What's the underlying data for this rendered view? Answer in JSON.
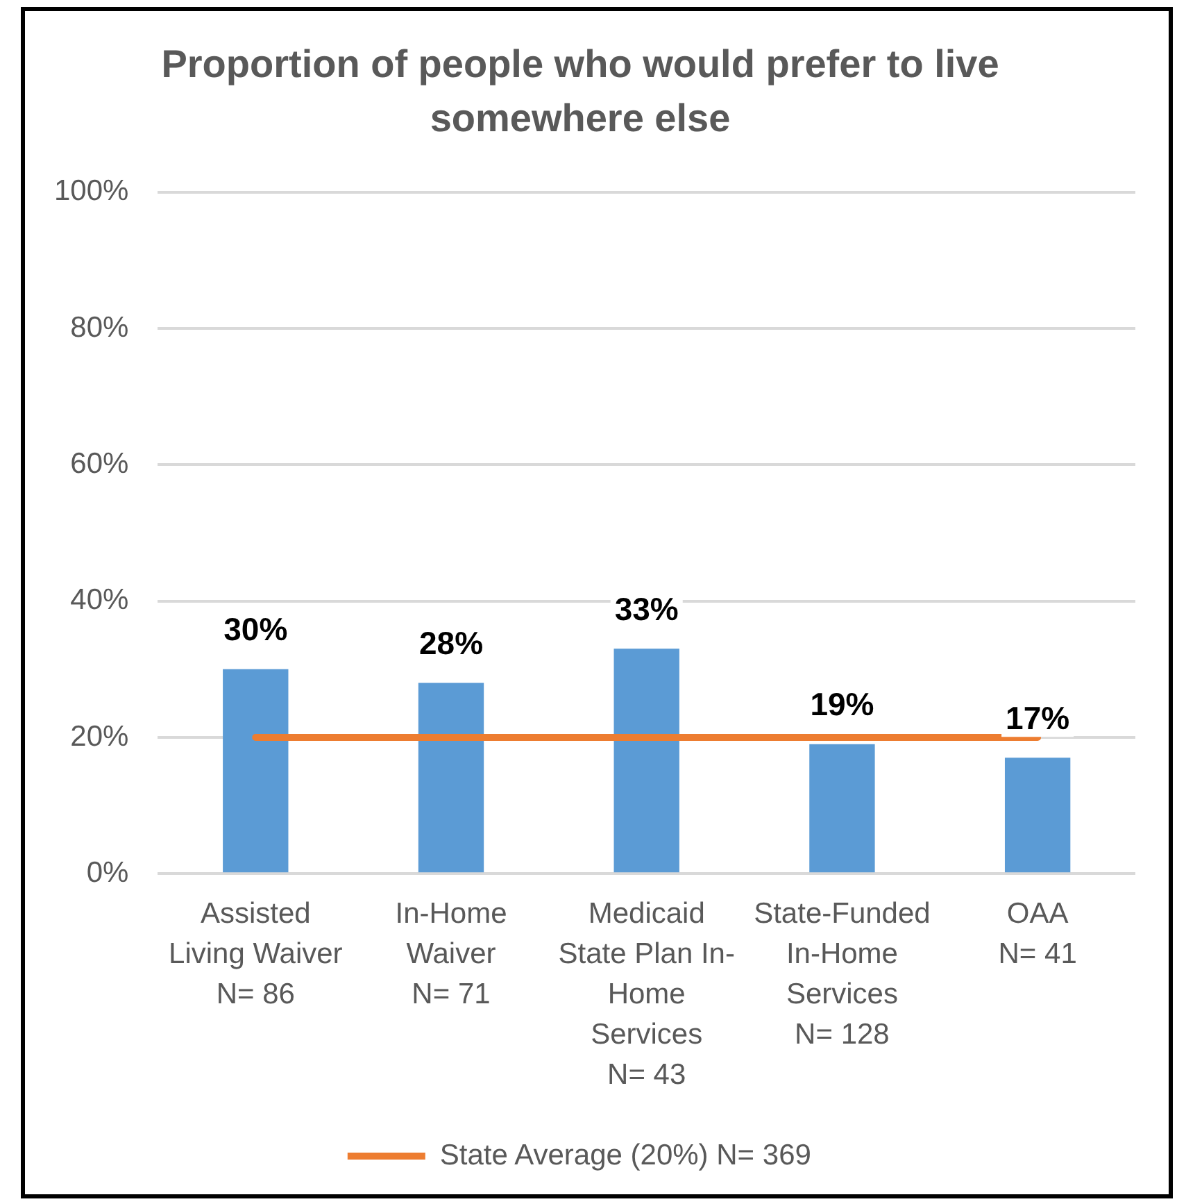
{
  "chart_data": {
    "type": "bar",
    "title": "Proportion of people who would prefer to live somewhere else",
    "categories": [
      "Assisted Living Waiver\nN= 86",
      "In-Home Waiver\nN= 71",
      "Medicaid State Plan In-Home Services\nN= 43",
      "State-Funded In-Home Services\nN= 128",
      "OAA\nN= 41"
    ],
    "series": [
      {
        "color": "#5b9bd5",
        "values": [
          30,
          28,
          33,
          19,
          17
        ],
        "value_labels": [
          "30%",
          "28%",
          "33%",
          "19%",
          "17%"
        ]
      },
      {
        "type": "line",
        "name": "State Average (20%) N= 369",
        "color": "#ed7d31",
        "values": [
          20,
          20,
          20,
          20,
          20
        ]
      }
    ],
    "ylim": [
      0,
      100
    ],
    "yticks": [
      {
        "value": 0,
        "label": "0%"
      },
      {
        "value": 20,
        "label": "20%"
      },
      {
        "value": 40,
        "label": "40%"
      },
      {
        "value": 60,
        "label": "60%"
      },
      {
        "value": 80,
        "label": "80%"
      },
      {
        "value": 100,
        "label": "100%"
      }
    ],
    "grid": "y",
    "legend": "bottom"
  }
}
